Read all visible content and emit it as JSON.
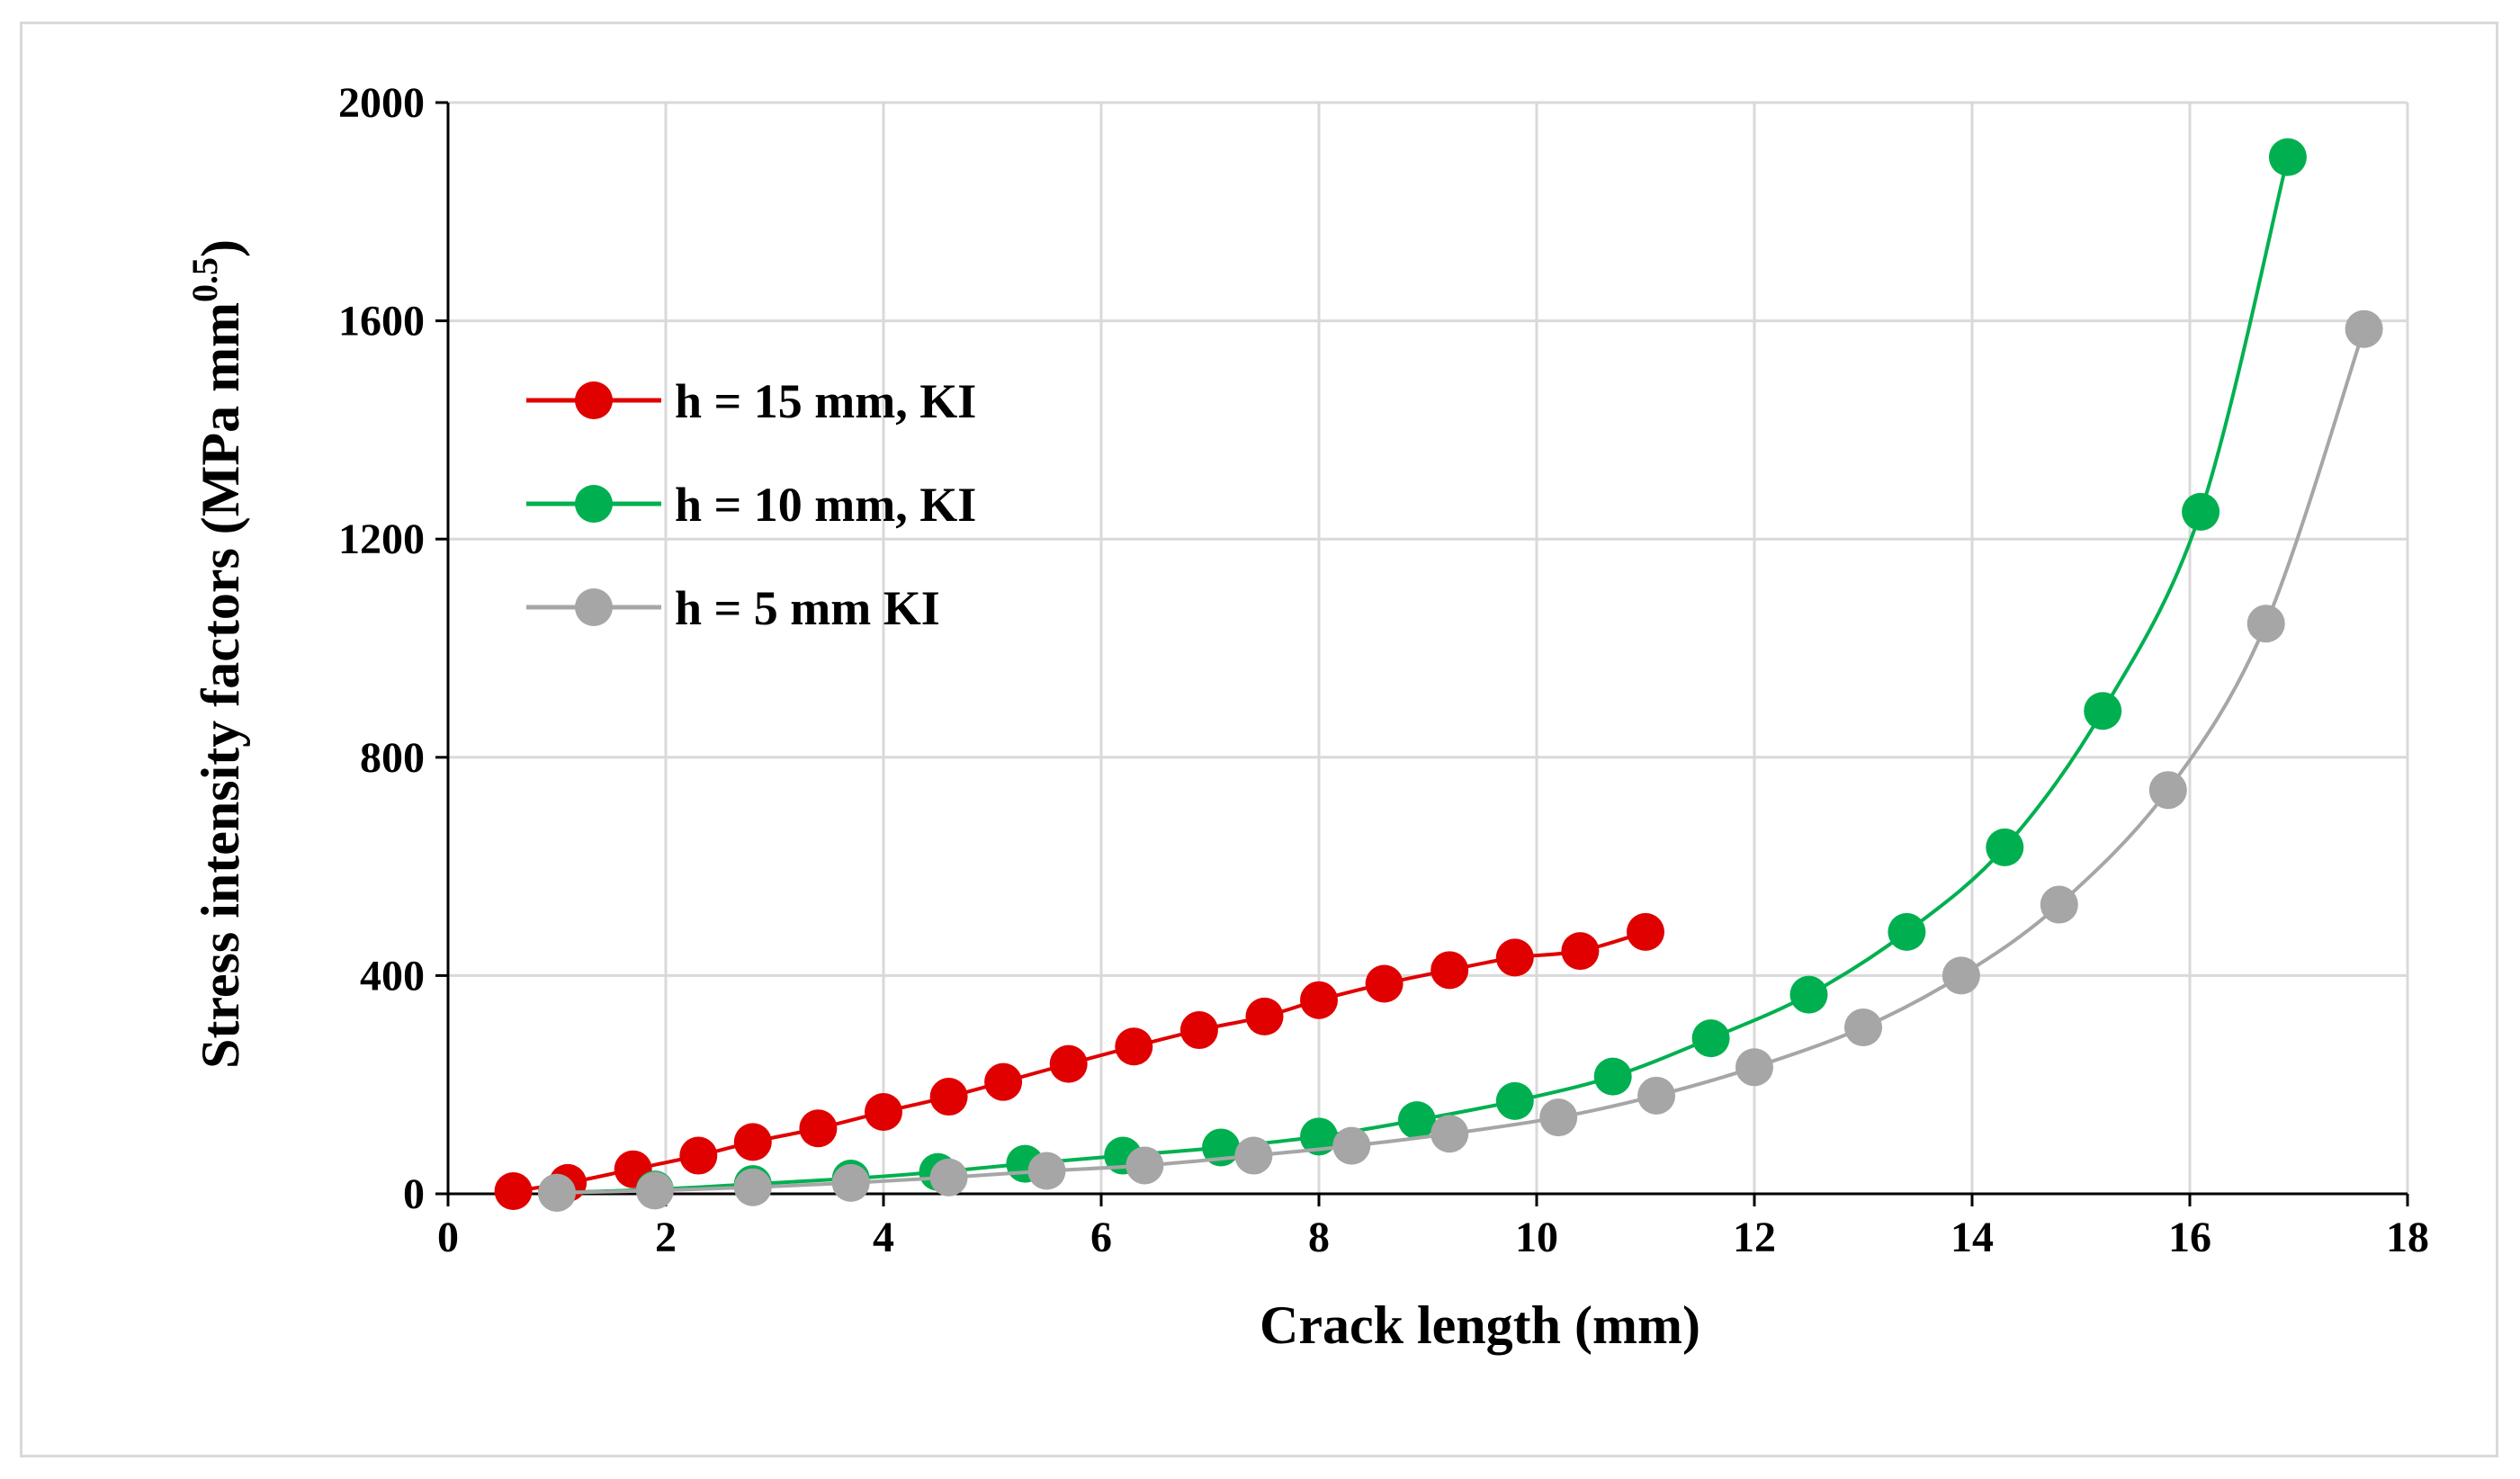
{
  "chart_data": {
    "type": "line",
    "title": "",
    "xlabel": "Crack length (mm)",
    "ylabel": "Stress intensity factors (MPa mm",
    "ylabel_superscript": "0.5",
    "ylabel_suffix": ")",
    "xlim": [
      0,
      18
    ],
    "ylim": [
      0,
      2000
    ],
    "xticks": [
      0,
      2,
      4,
      6,
      8,
      10,
      12,
      14,
      16,
      18
    ],
    "yticks": [
      0,
      400,
      800,
      1200,
      1600,
      2000
    ],
    "grid": true,
    "legend_position": "upper-left",
    "series": [
      {
        "name": "h = 15 mm, KI",
        "color": "#e00000",
        "x": [
          0.6,
          1.1,
          1.7,
          2.3,
          2.8,
          3.4,
          4.0,
          4.6,
          5.1,
          5.7,
          6.3,
          6.9,
          7.5,
          8.0,
          8.6,
          9.2,
          9.8,
          10.4,
          11.0
        ],
        "y": [
          5,
          20,
          45,
          70,
          95,
          120,
          150,
          178,
          205,
          238,
          270,
          300,
          325,
          355,
          385,
          410,
          433,
          445,
          480
        ]
      },
      {
        "name": "h = 10 mm, KI",
        "color": "#00b050",
        "x": [
          1.0,
          1.9,
          2.8,
          3.7,
          4.5,
          5.3,
          6.2,
          7.1,
          8.0,
          8.9,
          9.8,
          10.7,
          11.6,
          12.5,
          13.4,
          14.3,
          15.2,
          16.1,
          16.9
        ],
        "y": [
          2,
          8,
          18,
          28,
          40,
          55,
          70,
          85,
          105,
          135,
          170,
          215,
          285,
          365,
          480,
          635,
          885,
          1250,
          1900
        ]
      },
      {
        "name": "h = 5 mm KI",
        "color": "#a6a6a6",
        "x": [
          1.0,
          1.9,
          2.8,
          3.7,
          4.6,
          5.5,
          6.4,
          7.4,
          8.3,
          9.2,
          10.2,
          11.1,
          12.0,
          13.0,
          13.9,
          14.8,
          15.8,
          16.7,
          17.6
        ],
        "y": [
          2,
          6,
          12,
          20,
          30,
          42,
          52,
          70,
          88,
          110,
          140,
          180,
          232,
          305,
          400,
          530,
          740,
          1045,
          1585
        ]
      }
    ]
  }
}
